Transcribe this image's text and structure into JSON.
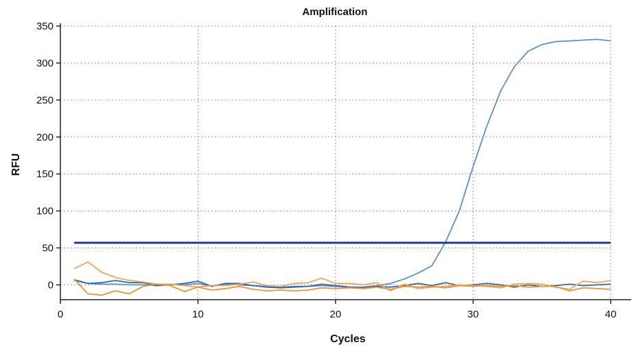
{
  "chart_data": {
    "type": "line",
    "title": "Amplification",
    "xlabel": "Cycles",
    "ylabel": "RFU",
    "xlim": [
      0,
      40
    ],
    "ylim": [
      -20,
      350
    ],
    "x_ticks": [
      0,
      10,
      20,
      30,
      40
    ],
    "y_ticks": [
      0,
      50,
      100,
      150,
      200,
      250,
      300,
      350
    ],
    "grid": true,
    "threshold": {
      "value": 57,
      "color": "#1f3a93"
    },
    "x": [
      1,
      2,
      3,
      4,
      5,
      6,
      7,
      8,
      9,
      10,
      11,
      12,
      13,
      14,
      15,
      16,
      17,
      18,
      19,
      20,
      21,
      22,
      23,
      24,
      25,
      26,
      27,
      28,
      29,
      30,
      31,
      32,
      33,
      34,
      35,
      36,
      37,
      38,
      39,
      40
    ],
    "series": [
      {
        "color": "#5b8fd1",
        "values": [
          6,
          2,
          1,
          1,
          0,
          0,
          -1,
          1,
          0,
          2,
          -2,
          1,
          0,
          -1,
          -2,
          -3,
          -2,
          -2,
          -1,
          -2,
          -3,
          -3,
          -1,
          2,
          8,
          16,
          26,
          58,
          100,
          160,
          215,
          262,
          295,
          316,
          325,
          329,
          330,
          331,
          332,
          330
        ]
      },
      {
        "color": "#2b6cb0",
        "values": [
          7,
          2,
          3,
          6,
          3,
          3,
          -1,
          0,
          2,
          5,
          -2,
          2,
          2,
          -1,
          -3,
          -4,
          -3,
          -2,
          1,
          -1,
          -3,
          -4,
          -2,
          -3,
          -1,
          2,
          -1,
          3,
          -1,
          0,
          2,
          0,
          -3,
          0,
          -2,
          -1,
          1,
          -1,
          0,
          1
        ]
      },
      {
        "color": "#f5a55a",
        "values": [
          22,
          31,
          17,
          10,
          6,
          4,
          1,
          1,
          -1,
          -3,
          -1,
          -1,
          1,
          4,
          -1,
          -2,
          2,
          3,
          9,
          2,
          2,
          0,
          3,
          -8,
          1,
          -5,
          -3,
          -2,
          0,
          -1,
          -2,
          -4,
          1,
          2,
          1,
          -3,
          -6,
          5,
          3,
          6
        ]
      },
      {
        "color": "#f0922e",
        "values": [
          8,
          -12,
          -14,
          -8,
          -12,
          -2,
          1,
          -1,
          -9,
          -3,
          -7,
          -5,
          -2,
          -6,
          -8,
          -7,
          -8,
          -7,
          -4,
          -5,
          -4,
          -5,
          -3,
          -6,
          -2,
          -3,
          -2,
          -4,
          -1,
          -2,
          -1,
          -2,
          -1,
          -3,
          -2,
          -2,
          -8,
          -4,
          -5,
          -6
        ]
      }
    ]
  }
}
